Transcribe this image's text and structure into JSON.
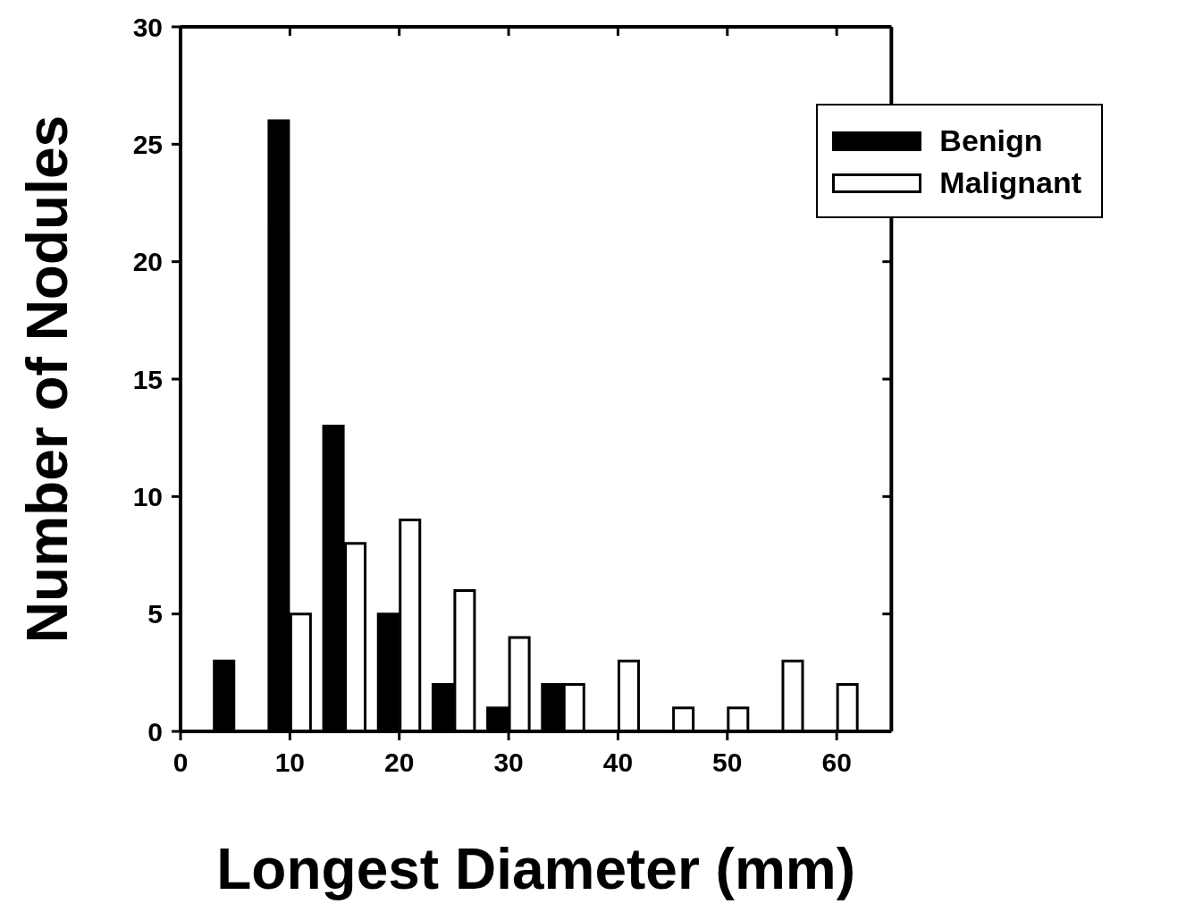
{
  "chart_data": {
    "type": "bar",
    "xlabel": "Longest Diameter (mm)",
    "ylabel": "Number of Nodules",
    "xlim": [
      0,
      65
    ],
    "xticks": [
      0,
      10,
      20,
      30,
      40,
      50,
      60
    ],
    "ylim": [
      0,
      30
    ],
    "yticks": [
      0,
      5,
      10,
      15,
      20,
      25,
      30
    ],
    "grid": false,
    "legend": "top right",
    "series": [
      {
        "name": "Benign",
        "color": "#000000",
        "x": [
          4,
          9,
          14,
          19,
          24,
          29,
          34
        ],
        "values": [
          3,
          26,
          13,
          5,
          2,
          1,
          2
        ]
      },
      {
        "name": "Malignant",
        "color": "#ffffff",
        "x": [
          11,
          16,
          21,
          26,
          31,
          36,
          41,
          46,
          51,
          56,
          61
        ],
        "values": [
          5,
          8,
          9,
          6,
          4,
          2,
          3,
          1,
          1,
          3,
          2
        ]
      }
    ]
  }
}
